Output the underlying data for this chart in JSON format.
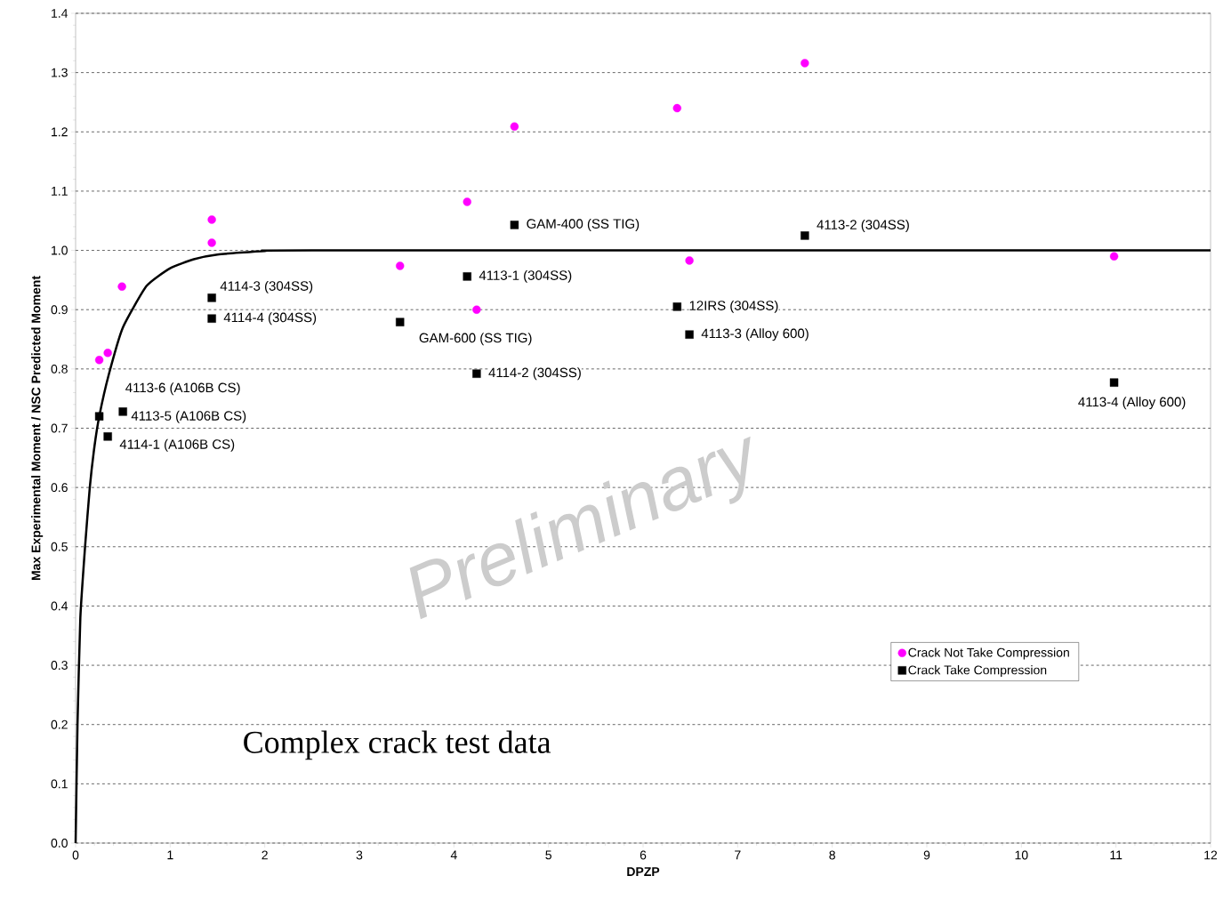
{
  "chart_data": {
    "type": "scatter",
    "xlabel": "DPZP",
    "ylabel": "Max Experimental Moment / NSC Predicted Moment",
    "xlim": [
      0,
      12
    ],
    "ylim": [
      0,
      1.4
    ],
    "xticks": [
      0,
      1,
      2,
      3,
      4,
      5,
      6,
      7,
      8,
      9,
      10,
      11,
      12
    ],
    "yticks": [
      {
        "value": 0,
        "label": "0.0"
      },
      {
        "value": 0.1,
        "label": "0.1"
      },
      {
        "value": 0.2,
        "label": "0.2"
      },
      {
        "value": 0.3,
        "label": "0.3"
      },
      {
        "value": 0.4,
        "label": "0.4"
      },
      {
        "value": 0.5,
        "label": "0.5"
      },
      {
        "value": 0.6,
        "label": "0.6"
      },
      {
        "value": 0.7,
        "label": "0.7"
      },
      {
        "value": 0.8,
        "label": "0.8"
      },
      {
        "value": 0.9,
        "label": "0.9"
      },
      {
        "value": 1.0,
        "label": "1.0"
      },
      {
        "value": 1.1,
        "label": "1.1"
      },
      {
        "value": 1.2,
        "label": "1.2"
      },
      {
        "value": 1.3,
        "label": "1.3"
      },
      {
        "value": 1.4,
        "label": "1.4"
      }
    ],
    "grid": "y",
    "legend": "right",
    "series": [
      {
        "name": "Crack Not Take Compression",
        "color": "#ff00ff",
        "marker": "circle",
        "x": [
          0.25,
          0.34,
          0.49,
          1.44,
          1.44,
          3.43,
          4.14,
          4.24,
          4.64,
          6.36,
          6.49,
          7.71,
          10.98
        ],
        "values": [
          0.815,
          0.827,
          0.939,
          1.052,
          1.013,
          0.974,
          1.082,
          0.9,
          1.209,
          1.24,
          0.983,
          1.316,
          0.99
        ]
      },
      {
        "name": "Crack Take Compression",
        "color": "#000000",
        "marker": "square",
        "x": [
          0.25,
          0.5,
          0.34,
          1.44,
          1.44,
          3.43,
          4.14,
          4.24,
          4.64,
          6.36,
          6.49,
          7.71,
          10.98
        ],
        "values": [
          0.72,
          0.728,
          0.686,
          0.92,
          0.885,
          0.879,
          0.956,
          0.792,
          1.043,
          0.905,
          0.858,
          1.025,
          0.777
        ]
      },
      {
        "type": "line",
        "color": "#000000",
        "marker": "none",
        "line_style": "solid",
        "x": [
          0,
          0.02,
          0.05,
          0.1,
          0.15,
          0.2,
          0.25,
          0.35,
          0.5,
          0.75,
          1,
          1.25,
          1.5,
          2,
          2.5,
          12
        ],
        "values": [
          0,
          0.2,
          0.38,
          0.5,
          0.6,
          0.67,
          0.72,
          0.79,
          0.87,
          0.94,
          0.97,
          0.985,
          0.993,
          0.999,
          1.0,
          1.0
        ]
      }
    ],
    "annotations": [
      {
        "text": "4113-6 (A106B CS)",
        "x": 0.25,
        "y": 0.72
      },
      {
        "text": "4113-5 (A106B CS)",
        "x": 0.5,
        "y": 0.728
      },
      {
        "text": "4114-1 (A106B CS)",
        "x": 0.34,
        "y": 0.686
      },
      {
        "text": "4114-3 (304SS)",
        "x": 1.44,
        "y": 0.92
      },
      {
        "text": "4114-4 (304SS)",
        "x": 1.44,
        "y": 0.885
      },
      {
        "text": "GAM-600 (SS TIG)",
        "x": 3.43,
        "y": 0.879
      },
      {
        "text": "4113-1 (304SS)",
        "x": 4.14,
        "y": 0.956
      },
      {
        "text": "4114-2 (304SS)",
        "x": 4.24,
        "y": 0.792
      },
      {
        "text": "GAM-400 (SS TIG)",
        "x": 4.64,
        "y": 1.043
      },
      {
        "text": "12IRS (304SS)",
        "x": 6.36,
        "y": 0.905
      },
      {
        "text": "4113-3 (Alloy 600)",
        "x": 6.49,
        "y": 0.858
      },
      {
        "text": "4113-2 (304SS)",
        "x": 7.71,
        "y": 1.025
      },
      {
        "text": "4113-4 (Alloy 600)",
        "x": 10.98,
        "y": 0.777
      },
      "Complex crack test data",
      "Preliminary"
    ]
  }
}
